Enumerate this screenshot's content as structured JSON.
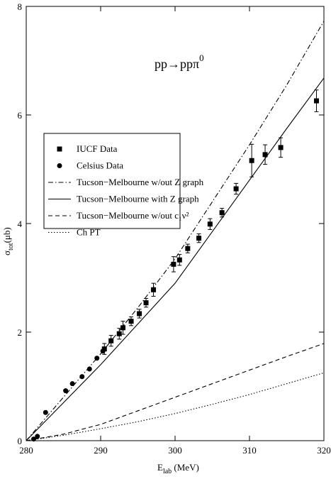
{
  "chart_data": {
    "type": "scatter-line",
    "annotation": {
      "main": "pp→ppπ",
      "sup": "0"
    },
    "xlabel": {
      "main": "E",
      "sub": "lab",
      "rest": " (MeV)"
    },
    "ylabel": {
      "main": "σ",
      "sub": "tot",
      "rest": "(μb)"
    },
    "xlim": [
      280,
      320
    ],
    "xticks": [
      280,
      290,
      300,
      310,
      320
    ],
    "ylim": [
      0,
      8
    ],
    "yticks": [
      0,
      2,
      4,
      6,
      8
    ],
    "series": [
      {
        "name": "IUCF Data",
        "kind": "points",
        "marker": "square",
        "color": "#000000",
        "x": [
          290.5,
          291.4,
          292.5,
          293.0,
          294.1,
          295.2,
          296.1,
          297.1,
          299.8,
          300.6,
          301.7,
          303.2,
          304.7,
          306.3,
          308.2,
          310.3,
          312.1,
          314.2,
          319.0
        ],
        "values": [
          1.69,
          1.84,
          1.97,
          2.08,
          2.2,
          2.34,
          2.54,
          2.78,
          3.25,
          3.33,
          3.54,
          3.73,
          3.99,
          4.2,
          4.64,
          5.16,
          5.27,
          5.4,
          6.26
        ],
        "errors": [
          0.1,
          0.1,
          0.1,
          0.12,
          0.08,
          0.08,
          0.08,
          0.12,
          0.14,
          0.1,
          0.08,
          0.08,
          0.1,
          0.08,
          0.1,
          0.3,
          0.18,
          0.18,
          0.2
        ]
      },
      {
        "name": "Celsius Data",
        "kind": "points",
        "marker": "circle",
        "color": "#000000",
        "x": [
          281.0,
          281.5,
          282.6,
          285.3,
          286.2,
          287.5,
          288.5,
          289.5,
          290.3
        ],
        "values": [
          0.03,
          0.08,
          0.52,
          0.92,
          1.05,
          1.18,
          1.32,
          1.52,
          1.65
        ]
      },
      {
        "name": "Tucson−Melbourne w/out Z graph",
        "kind": "line",
        "dash": "dashdot",
        "color": "#000000",
        "x": [
          280,
          285,
          290,
          295,
          300,
          305,
          310,
          315,
          320
        ],
        "values": [
          0,
          0.8,
          1.6,
          2.45,
          3.35,
          4.4,
          5.45,
          6.55,
          7.73
        ]
      },
      {
        "name": "Tucson−Melbourne with Z graph",
        "kind": "line",
        "dash": "solid",
        "color": "#000000",
        "x": [
          280,
          285,
          290,
          295,
          300,
          305,
          310,
          315,
          320
        ],
        "values": [
          0,
          0.7,
          1.4,
          2.15,
          2.9,
          3.85,
          4.8,
          5.75,
          6.68
        ]
      },
      {
        "name": "Tucson−Melbourne w/out c₁ν²",
        "kind": "line",
        "dash": "dashed",
        "color": "#000000",
        "x": [
          280,
          285,
          290,
          295,
          300,
          305,
          310,
          315,
          320
        ],
        "values": [
          0,
          0.12,
          0.3,
          0.55,
          0.8,
          1.05,
          1.3,
          1.55,
          1.79
        ]
      },
      {
        "name": "Ch PT",
        "kind": "line",
        "dash": "dotted",
        "color": "#000000",
        "x": [
          280,
          285,
          290,
          295,
          300,
          305,
          310,
          315,
          320
        ],
        "values": [
          0,
          0.1,
          0.22,
          0.35,
          0.5,
          0.67,
          0.85,
          1.05,
          1.25
        ]
      }
    ]
  }
}
